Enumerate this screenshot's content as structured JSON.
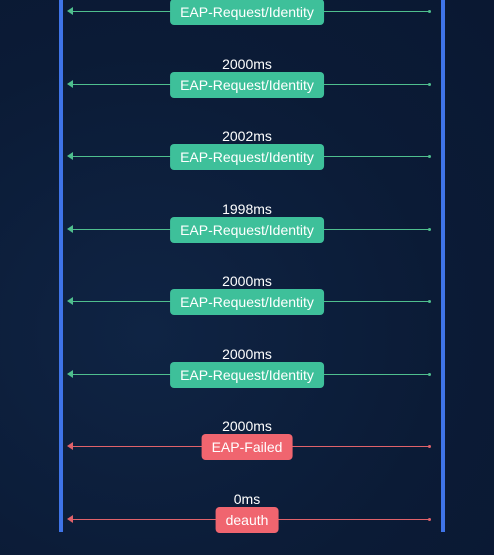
{
  "diagram": {
    "messages": [
      {
        "timing": "",
        "label": "EAP-Request/Identity",
        "status": "ok"
      },
      {
        "timing": "2000ms",
        "label": "EAP-Request/Identity",
        "status": "ok"
      },
      {
        "timing": "2002ms",
        "label": "EAP-Request/Identity",
        "status": "ok"
      },
      {
        "timing": "1998ms",
        "label": "EAP-Request/Identity",
        "status": "ok"
      },
      {
        "timing": "2000ms",
        "label": "EAP-Request/Identity",
        "status": "ok"
      },
      {
        "timing": "2000ms",
        "label": "EAP-Request/Identity",
        "status": "ok"
      },
      {
        "timing": "2000ms",
        "label": "EAP-Failed",
        "status": "fail"
      },
      {
        "timing": "0ms",
        "label": "deauth",
        "status": "fail"
      }
    ],
    "colors": {
      "background": "#0b1b36",
      "lifeline": "#3f74e8",
      "ok_arrow": "#4fbf8e",
      "ok_label": "#3ec09a",
      "fail_arrow": "#e0626a",
      "fail_label": "#f0656f"
    },
    "direction": "right-to-left"
  }
}
